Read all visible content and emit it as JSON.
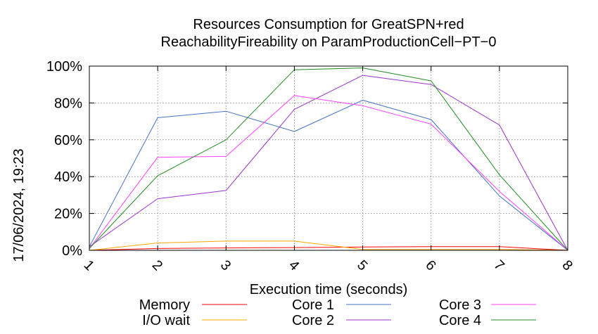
{
  "chart_data": {
    "type": "line",
    "title": [
      "Resources Consumption for GreatSPN+red",
      "ReachabilityFireability on ParamProductionCell−PT−0"
    ],
    "xlabel": "Execution time (seconds)",
    "ylabel": "",
    "x": [
      1,
      2,
      3,
      4,
      5,
      6,
      7,
      8
    ],
    "xlim": [
      1,
      8
    ],
    "ylim": [
      0,
      100
    ],
    "ytick_labels": [
      "0%",
      "20%",
      "40%",
      "60%",
      "80%",
      "100%"
    ],
    "xtick_labels": [
      "1",
      "2",
      "3",
      "4",
      "5",
      "6",
      "7",
      "8"
    ],
    "grid": true,
    "legend_position": "bottom",
    "side_label": "17/06/2024, 19:23",
    "series": [
      {
        "name": "Memory",
        "color": "#ff0000",
        "values": [
          0,
          1,
          1.3,
          1.5,
          1.8,
          2,
          2,
          0
        ]
      },
      {
        "name": "I/O wait",
        "color": "#ffa500",
        "values": [
          0,
          4,
          5,
          5,
          0.5,
          0.5,
          0.5,
          0
        ]
      },
      {
        "name": "Core 1",
        "color": "#4472c4",
        "values": [
          2,
          72,
          75.5,
          64.5,
          81.5,
          71,
          29.5,
          0
        ]
      },
      {
        "name": "Core 2",
        "color": "#9932cc",
        "values": [
          2,
          28,
          32.5,
          76.5,
          95,
          90,
          68,
          0
        ]
      },
      {
        "name": "Core 3",
        "color": "#ff40ff",
        "values": [
          1,
          50.5,
          51,
          84,
          78.5,
          68.5,
          32,
          0
        ]
      },
      {
        "name": "Core 4",
        "color": "#228b22",
        "values": [
          1,
          40.5,
          60,
          98,
          99,
          92,
          41,
          0
        ]
      }
    ]
  }
}
